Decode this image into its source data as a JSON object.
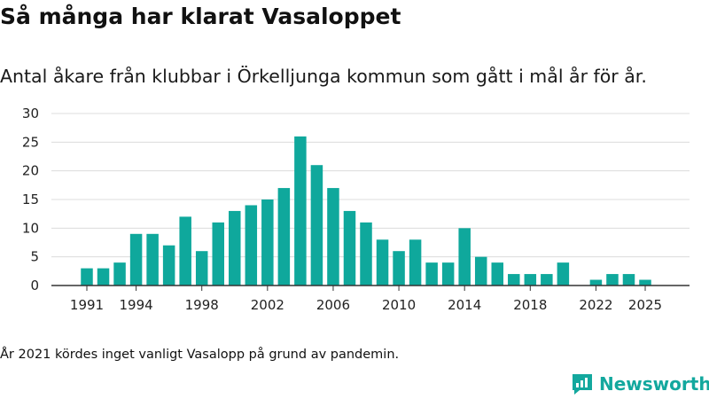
{
  "title": "Så många har klarat Vasaloppet",
  "subtitle": "Antal åkare från klubbar i Örkelljunga kommun som gått i mål år för år.",
  "note": "År 2021 kördes inget vanligt Vasalopp på grund av pandemin.",
  "brand": {
    "name": "Newsworthy",
    "logo_icon": "newsworthy-logo-icon",
    "color": "#13a89e"
  },
  "chart_data": {
    "type": "bar",
    "title": "Så många har klarat Vasaloppet",
    "xlabel": "",
    "ylabel": "",
    "ylim": [
      0,
      30
    ],
    "yticks": [
      0,
      5,
      10,
      15,
      20,
      25,
      30
    ],
    "xtick_labels": [
      "1991",
      "1994",
      "1998",
      "2002",
      "2006",
      "2010",
      "2014",
      "2018",
      "2022",
      "2025"
    ],
    "grid": true,
    "bar_color": "#0fa89c",
    "categories": [
      "1991",
      "1992",
      "1993",
      "1994",
      "1995",
      "1996",
      "1997",
      "1998",
      "1999",
      "2000",
      "2001",
      "2002",
      "2003",
      "2004",
      "2005",
      "2006",
      "2007",
      "2008",
      "2009",
      "2010",
      "2011",
      "2012",
      "2013",
      "2014",
      "2015",
      "2016",
      "2017",
      "2018",
      "2019",
      "2020",
      "2021",
      "2022",
      "2023",
      "2024",
      "2025"
    ],
    "values": [
      3,
      3,
      4,
      9,
      9,
      7,
      12,
      6,
      11,
      13,
      14,
      15,
      17,
      26,
      21,
      17,
      13,
      11,
      8,
      6,
      8,
      4,
      4,
      10,
      5,
      4,
      2,
      2,
      2,
      4,
      0,
      1,
      2,
      2,
      1
    ]
  }
}
